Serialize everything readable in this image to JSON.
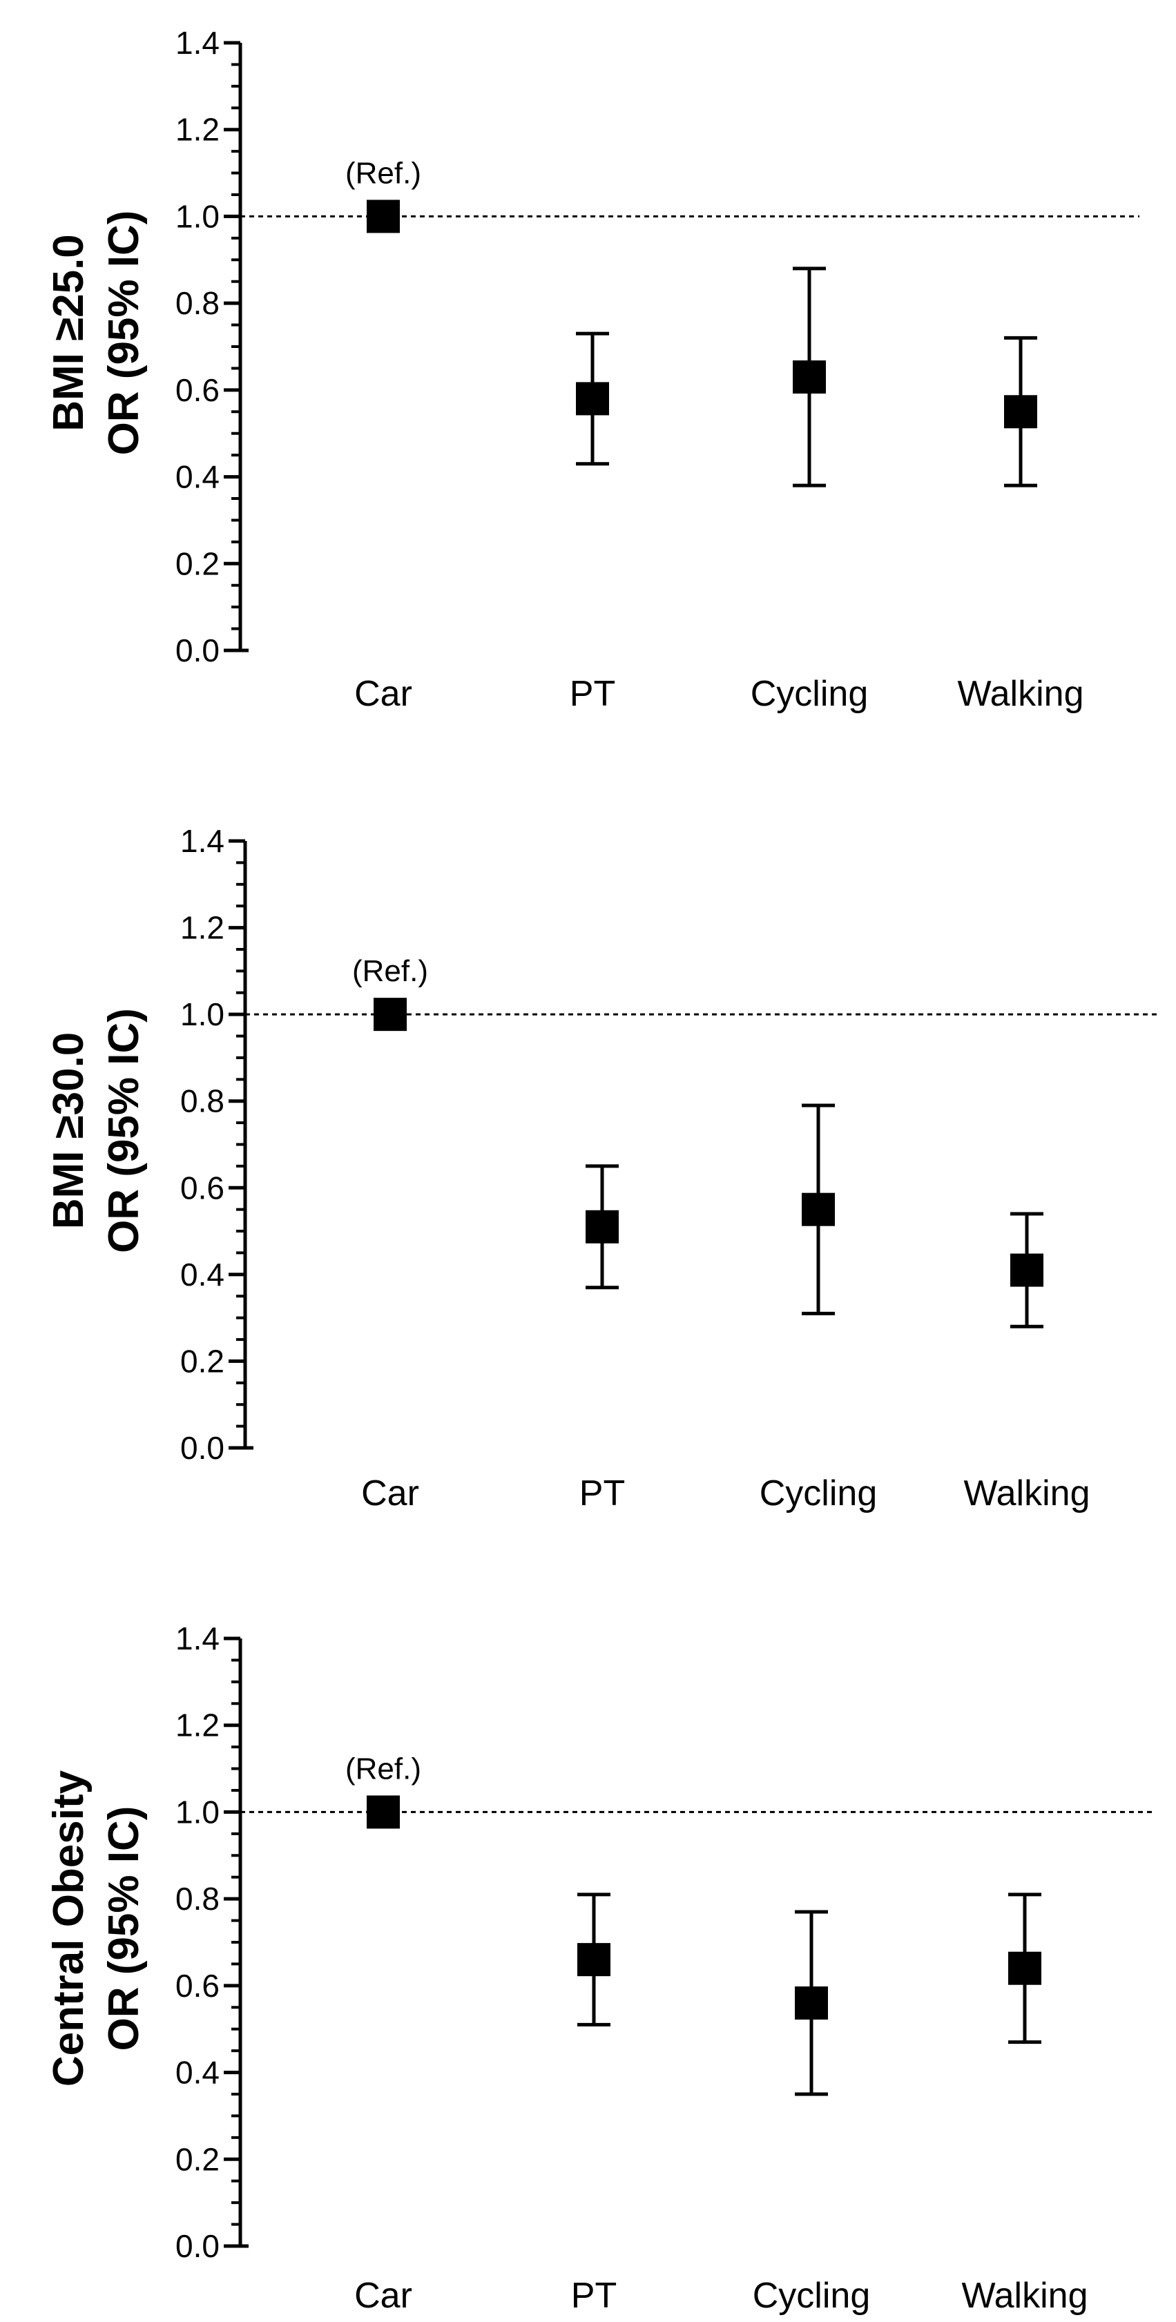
{
  "chart_data": [
    {
      "type": "scatter",
      "title": "",
      "ylabel_lines": [
        "BMI ≥25.0",
        "OR (95% IC)"
      ],
      "xlabel": "",
      "ylim": [
        0,
        1.4
      ],
      "yticks": [
        "0.0",
        "0.2",
        "0.4",
        "0.6",
        "0.8",
        "1.0",
        "1.2",
        "1.4"
      ],
      "reference_line": 1.0,
      "reference_label": "(Ref.)",
      "categories": [
        "Car",
        "PT",
        "Cycling",
        "Walking"
      ],
      "values": [
        1.0,
        0.58,
        0.63,
        0.55
      ],
      "ci_low": [
        null,
        0.43,
        0.38,
        0.38
      ],
      "ci_high": [
        null,
        0.73,
        0.88,
        0.72
      ]
    },
    {
      "type": "scatter",
      "title": "",
      "ylabel_lines": [
        "BMI ≥30.0",
        "OR (95% IC)"
      ],
      "xlabel": "",
      "ylim": [
        0,
        1.4
      ],
      "yticks": [
        "0.0",
        "0.2",
        "0.4",
        "0.6",
        "0.8",
        "1.0",
        "1.2",
        "1.4"
      ],
      "reference_line": 1.0,
      "reference_label": "(Ref.)",
      "categories": [
        "Car",
        "PT",
        "Cycling",
        "Walking"
      ],
      "values": [
        1.0,
        0.51,
        0.55,
        0.41
      ],
      "ci_low": [
        null,
        0.37,
        0.31,
        0.28
      ],
      "ci_high": [
        null,
        0.65,
        0.79,
        0.54
      ]
    },
    {
      "type": "scatter",
      "title": "",
      "ylabel_lines": [
        "Central Obesity",
        "OR (95% IC)"
      ],
      "xlabel": "",
      "ylim": [
        0,
        1.4
      ],
      "yticks": [
        "0.0",
        "0.2",
        "0.4",
        "0.6",
        "0.8",
        "1.0",
        "1.2",
        "1.4"
      ],
      "reference_line": 1.0,
      "reference_label": "(Ref.)",
      "categories": [
        "Car",
        "PT",
        "Cycling",
        "Walking"
      ],
      "values": [
        1.0,
        0.66,
        0.56,
        0.64
      ],
      "ci_low": [
        null,
        0.51,
        0.35,
        0.47
      ],
      "ci_high": [
        null,
        0.81,
        0.77,
        0.81
      ]
    }
  ]
}
